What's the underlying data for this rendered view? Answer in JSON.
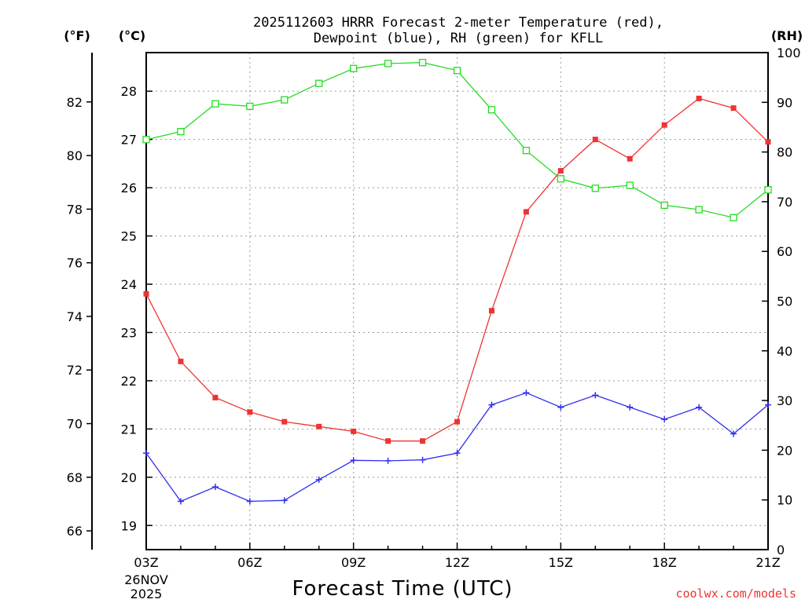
{
  "chart_data": {
    "type": "line",
    "title_lines": [
      "2025112603 HRRR Forecast 2-meter Temperature (red),",
      "Dewpoint (blue), RH (green) for KFLL"
    ],
    "xlabel": "Forecast Time (UTC)",
    "credit": "coolwx.com/models",
    "left_outer_unit": "(°F)",
    "left_inner_unit": "(°C)",
    "right_unit": "(RH)",
    "x_hours": [
      3,
      4,
      5,
      6,
      7,
      8,
      9,
      10,
      11,
      12,
      13,
      14,
      15,
      16,
      17,
      18,
      19,
      20,
      21
    ],
    "xlim": [
      3,
      21
    ],
    "x_ticks": [
      {
        "hour": 3,
        "label": "03Z"
      },
      {
        "hour": 6,
        "label": "06Z"
      },
      {
        "hour": 9,
        "label": "09Z"
      },
      {
        "hour": 12,
        "label": "12Z"
      },
      {
        "hour": 15,
        "label": "15Z"
      },
      {
        "hour": 18,
        "label": "18Z"
      },
      {
        "hour": 21,
        "label": "21Z"
      }
    ],
    "date_label": [
      "26NOV",
      "2025"
    ],
    "celsius_axis": {
      "range": [
        18.5,
        28.8
      ],
      "ticks": [
        19,
        20,
        21,
        22,
        23,
        24,
        25,
        26,
        27,
        28
      ]
    },
    "fahrenheit_axis": {
      "ticks": [
        66,
        68,
        70,
        72,
        74,
        76,
        78,
        80,
        82
      ]
    },
    "rh_axis": {
      "range": [
        0,
        100
      ],
      "ticks": [
        0,
        10,
        20,
        30,
        40,
        50,
        60,
        70,
        80,
        90,
        100
      ]
    },
    "series": [
      {
        "name": "2-meter Temperature",
        "axis": "celsius",
        "color": "#ee3333",
        "marker": "filled-square",
        "values": [
          23.8,
          22.4,
          21.65,
          21.35,
          21.15,
          21.05,
          20.95,
          20.75,
          20.75,
          21.15,
          23.45,
          25.5,
          26.35,
          27.0,
          26.6,
          27.3,
          27.85,
          27.65,
          26.95
        ]
      },
      {
        "name": "Dewpoint",
        "axis": "celsius",
        "color": "#2f2fee",
        "marker": "plus",
        "values": [
          20.5,
          19.5,
          19.8,
          19.5,
          19.52,
          19.95,
          20.35,
          20.34,
          20.36,
          20.5,
          21.5,
          21.75,
          21.45,
          21.7,
          21.45,
          21.2,
          21.45,
          20.9,
          21.5
        ]
      },
      {
        "name": "Relative Humidity",
        "axis": "rh",
        "color": "#22dd22",
        "marker": "open-square",
        "values": [
          82.5,
          84.1,
          89.7,
          89.2,
          90.5,
          93.8,
          96.8,
          97.8,
          98.0,
          96.4,
          88.5,
          80.3,
          74.6,
          72.7,
          73.3,
          69.3,
          68.4,
          66.8,
          72.4
        ]
      }
    ]
  }
}
